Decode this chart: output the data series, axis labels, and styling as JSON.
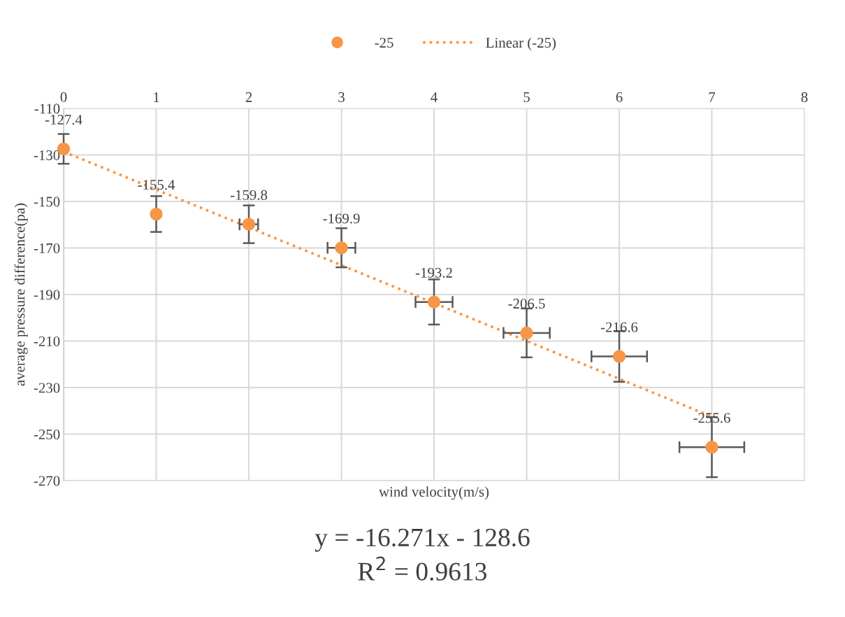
{
  "chart_data": {
    "type": "scatter",
    "xlabel": "wind velocity(m/s)",
    "ylabel": "average pressure difference(pa)",
    "x": [
      0,
      1,
      2,
      3,
      4,
      5,
      6,
      7
    ],
    "series": [
      {
        "name": "-25",
        "color": "#f79646",
        "marker": "circle",
        "data_labels": true,
        "values": [
          -127.4,
          -155.4,
          -159.8,
          -169.9,
          -193.2,
          -206.5,
          -216.6,
          -255.6
        ],
        "errors": [
          6.4,
          7.7,
          8.1,
          8.4,
          9.7,
          10.5,
          10.9,
          12.9
        ],
        "xerrors": [
          null,
          null,
          0.1,
          0.15,
          0.2,
          0.25,
          0.3,
          0.35
        ]
      },
      {
        "name": "Linear (-25)",
        "type": "line",
        "color": "#f79646",
        "line_style": "dotted",
        "marker": "none",
        "x": [
          0,
          7
        ],
        "values": [
          -128.6,
          -242.5
        ]
      }
    ],
    "xlim": [
      0,
      8
    ],
    "xticks": [
      0,
      1,
      2,
      3,
      4,
      5,
      6,
      7,
      8
    ],
    "ylim": [
      -270,
      -110
    ],
    "yticks": [
      -110,
      -130,
      -150,
      -170,
      -190,
      -210,
      -230,
      -250,
      -270
    ],
    "grid": true,
    "legend": "top",
    "annotations": [
      "y = -16.271x - 128.6",
      "R$^{2}$ = 0.9613"
    ]
  }
}
